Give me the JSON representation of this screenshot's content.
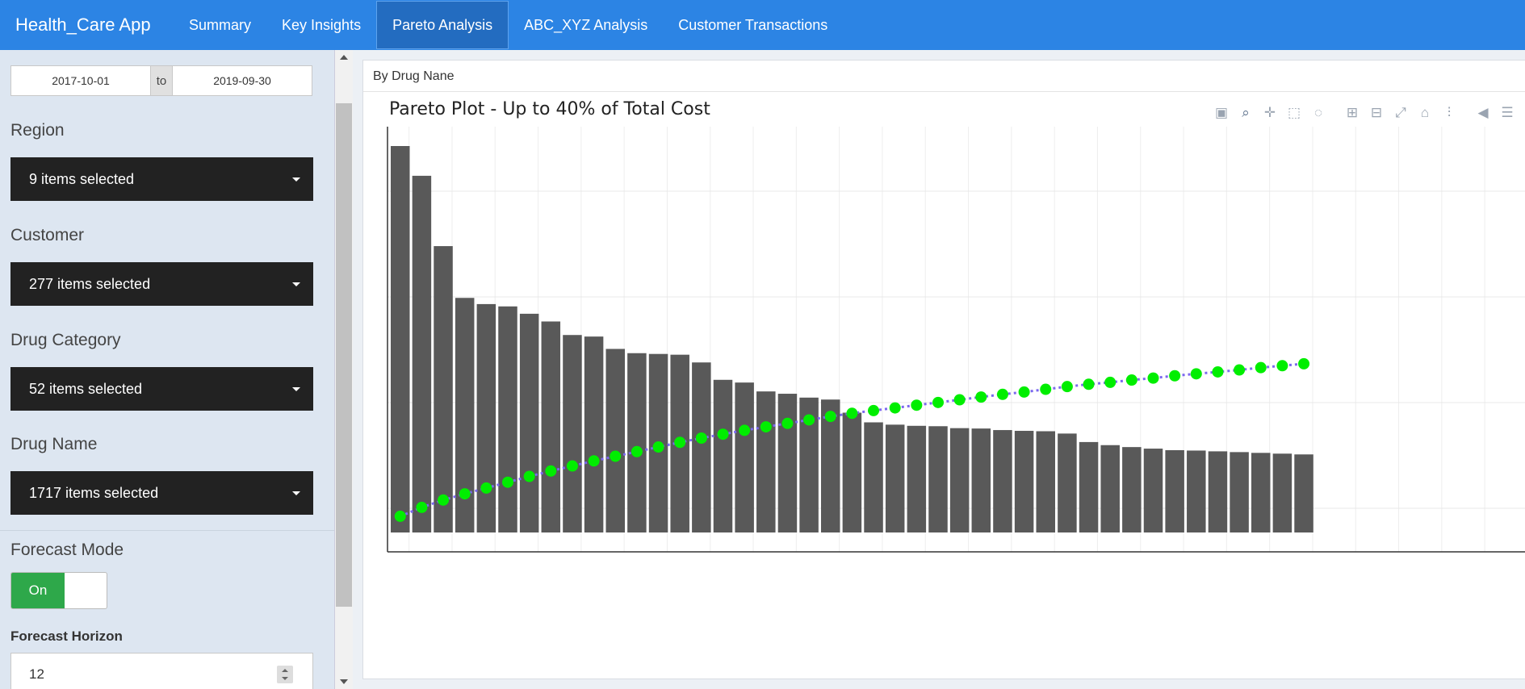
{
  "app": {
    "title": "Health_Care App"
  },
  "nav": {
    "tabs": [
      {
        "label": "Summary",
        "active": false
      },
      {
        "label": "Key Insights",
        "active": false
      },
      {
        "label": "Pareto Analysis",
        "active": true
      },
      {
        "label": "ABC_XYZ Analysis",
        "active": false
      },
      {
        "label": "Customer Transactions",
        "active": false
      }
    ]
  },
  "sidebar": {
    "date_range": {
      "start": "2017-10-01",
      "separator": "to",
      "end": "2019-09-30"
    },
    "filters": [
      {
        "label": "Region",
        "value": "9 items selected"
      },
      {
        "label": "Customer",
        "value": "277 items selected"
      },
      {
        "label": "Drug Category",
        "value": "52 items selected"
      },
      {
        "label": "Drug Name",
        "value": "1717 items selected"
      }
    ],
    "forecast_mode": {
      "label": "Forecast Mode",
      "state": "On"
    },
    "forecast_horizon": {
      "label": "Forecast Horizon",
      "value": "12"
    }
  },
  "panel": {
    "title": "By Drug Nane"
  },
  "modebar": [
    "camera-icon",
    "zoom-icon",
    "pan-icon",
    "box-select-icon",
    "lasso-icon",
    "zoom-in-icon",
    "zoom-out-icon",
    "autoscale-icon",
    "reset-axes-icon",
    "spike-lines-icon",
    "compare-hover-icon",
    "show-closest-icon"
  ],
  "chart_data": {
    "type": "bar",
    "title": "Pareto Plot - Up to 40% of Total Cost",
    "xlabel": "",
    "ylabel": "",
    "colors": {
      "bar": "#595959",
      "cumulative_marker": "#00ee00",
      "cumulative_line": "#7b68ee"
    },
    "series": [
      {
        "type": "bar",
        "values": [
          100,
          92.3,
          74.1,
          60.7,
          59.1,
          58.5,
          56.6,
          54.6,
          51.1,
          50.7,
          47.5,
          46.4,
          46.2,
          46.0,
          44.0,
          39.5,
          38.8,
          36.5,
          35.9,
          34.9,
          34.4,
          31.0,
          28.5,
          27.9,
          27.6,
          27.5,
          27.0,
          26.9,
          26.5,
          26.3,
          26.2,
          25.6,
          23.4,
          22.6,
          22.1,
          21.7,
          21.3,
          21.2,
          21.0,
          20.8,
          20.6,
          20.4,
          20.2
        ]
      },
      {
        "type": "cumulative",
        "values": [
          2.1,
          4.4,
          6.3,
          7.9,
          9.4,
          10.9,
          12.4,
          13.8,
          15.1,
          16.4,
          17.6,
          18.8,
          20.0,
          21.2,
          22.3,
          23.3,
          24.3,
          25.2,
          26.1,
          27.0,
          27.9,
          28.7,
          29.4,
          30.1,
          30.8,
          31.5,
          32.2,
          32.9,
          33.6,
          34.2,
          34.9,
          35.6,
          36.2,
          36.7,
          37.3,
          37.8,
          38.4,
          38.9,
          39.4,
          39.9,
          40.5,
          41.0,
          41.5
        ]
      }
    ],
    "grid": true
  }
}
